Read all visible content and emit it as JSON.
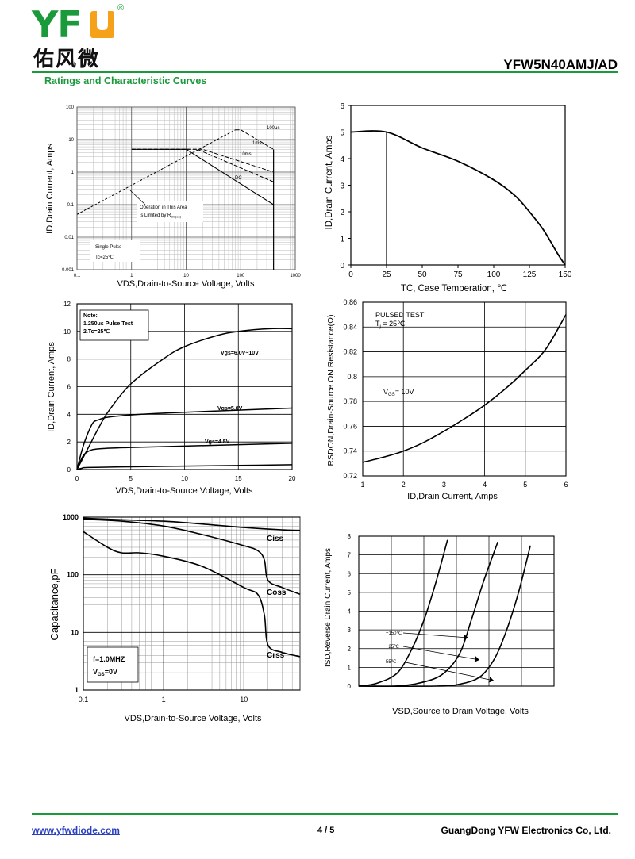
{
  "header": {
    "logo_letters": "YF",
    "logo_reg": "®",
    "logo_chinese": "佑风微",
    "part_number": "YFW5N40AMJ/AD",
    "section_title": "Ratings and Characteristic Curves"
  },
  "footer": {
    "website": "www.yfwdiode.com",
    "page": "4 / 5",
    "company": "GuangDong YFW Electronics Co, Ltd."
  },
  "colors": {
    "brand_green": "#1a9a3a",
    "logo_orange": "#f5a21a",
    "link_blue": "#2a3fbf"
  },
  "chart_data": [
    {
      "id": "soa",
      "type": "line",
      "xscale": "log",
      "yscale": "log",
      "xlim": [
        0.1,
        1000
      ],
      "ylim": [
        0.001,
        100
      ],
      "xlabel": "VDS,Drain-to-Source Voltage, Volts",
      "ylabel": "ID,Drain Current, Amps",
      "xticks": [
        "0.1",
        "1",
        "10",
        "100",
        "1000"
      ],
      "yticks": [
        "0.001",
        "0.01",
        "0.1",
        "1",
        "10",
        "100"
      ],
      "annotations": {
        "limited": [
          "Operation in This Area",
          "is Limited by R",
          "DS(on)"
        ],
        "pulse": [
          "Single Pulse",
          "Tc=25℃"
        ]
      },
      "series": [
        {
          "name": "RDS(on) limit",
          "values": [
            [
              0.1,
              0.05
            ],
            [
              80,
              20
            ]
          ]
        },
        {
          "name": "100μs",
          "values": [
            [
              80,
              20
            ],
            [
              100,
              20
            ],
            [
              400,
              5
            ]
          ]
        },
        {
          "name": "1ms",
          "values": [
            [
              1,
              5
            ],
            [
              20,
              5
            ],
            [
              400,
              1
            ]
          ]
        },
        {
          "name": "10ms",
          "values": [
            [
              1,
              5
            ],
            [
              16,
              5
            ],
            [
              400,
              0.5
            ]
          ]
        },
        {
          "name": "DC",
          "values": [
            [
              1,
              5
            ],
            [
              10,
              5
            ],
            [
              400,
              0.1
            ]
          ]
        }
      ]
    },
    {
      "id": "derating",
      "type": "line",
      "xlim": [
        0,
        150
      ],
      "ylim": [
        0,
        6
      ],
      "xlabel": "TC, Case Temperation, ℃",
      "ylabel": "ID,Drain Current, Amps",
      "xticks": [
        "0",
        "25",
        "50",
        "75",
        "100",
        "125",
        "150"
      ],
      "yticks": [
        "0",
        "1",
        "2",
        "3",
        "4",
        "5",
        "6"
      ],
      "series": [
        {
          "values": [
            [
              0,
              5
            ],
            [
              25,
              5
            ],
            [
              50,
              4.4
            ],
            [
              75,
              3.9
            ],
            [
              100,
              3.2
            ],
            [
              115,
              2.6
            ],
            [
              125,
              2
            ],
            [
              135,
              1.3
            ],
            [
              145,
              0.4
            ],
            [
              150,
              0
            ]
          ]
        }
      ]
    },
    {
      "id": "output",
      "type": "line",
      "xlim": [
        0,
        20
      ],
      "ylim": [
        0,
        12
      ],
      "xlabel": "VDS,Drain-to-Source Voltage, Volts",
      "ylabel": "ID,Drain Current, Amps",
      "xticks": [
        "0",
        "5",
        "10",
        "15",
        "20"
      ],
      "yticks": [
        "0",
        "2",
        "4",
        "6",
        "8",
        "10",
        "12"
      ],
      "note": [
        "Note:",
        "1.250us Pulse Test",
        "2.Tc=25℃"
      ],
      "series": [
        {
          "name": "Vgs=6.0V~10V",
          "values": [
            [
              0,
              0
            ],
            [
              1,
              1.5
            ],
            [
              2,
              3
            ],
            [
              3,
              4.3
            ],
            [
              5,
              6.2
            ],
            [
              8,
              8
            ],
            [
              10,
              8.9
            ],
            [
              13,
              9.7
            ],
            [
              15,
              10
            ],
            [
              18,
              10.2
            ],
            [
              20,
              10.2
            ]
          ]
        },
        {
          "name": "Vgs=5.0V",
          "values": [
            [
              0,
              0
            ],
            [
              0.5,
              1.5
            ],
            [
              1,
              2.6
            ],
            [
              1.5,
              3.4
            ],
            [
              2,
              3.6
            ],
            [
              3,
              3.8
            ],
            [
              6,
              4
            ],
            [
              10,
              4.15
            ],
            [
              15,
              4.3
            ],
            [
              20,
              4.45
            ]
          ]
        },
        {
          "name": "Vgs=4.5V",
          "values": [
            [
              0,
              0
            ],
            [
              0.5,
              0.9
            ],
            [
              1,
              1.3
            ],
            [
              2,
              1.5
            ],
            [
              5,
              1.6
            ],
            [
              10,
              1.7
            ],
            [
              15,
              1.8
            ],
            [
              20,
              1.9
            ]
          ]
        },
        {
          "values": [
            [
              0,
              0
            ],
            [
              0.5,
              0.1
            ],
            [
              1,
              0.15
            ],
            [
              5,
              0.2
            ],
            [
              10,
              0.25
            ],
            [
              15,
              0.3
            ],
            [
              20,
              0.35
            ]
          ]
        }
      ]
    },
    {
      "id": "rdson",
      "type": "line",
      "xlim": [
        1,
        6
      ],
      "ylim": [
        0.72,
        0.86
      ],
      "xlabel": "ID,Drain Current, Amps",
      "ylabel": "RSDON,Drain-Source ON Resistance(Ω)",
      "xticks": [
        "1",
        "2",
        "3",
        "4",
        "5",
        "6"
      ],
      "yticks": [
        "0.72",
        "0.74",
        "0.76",
        "0.78",
        "0.8",
        "0.82",
        "0.84",
        "0.86"
      ],
      "annotations": {
        "pulsed": "PULSED TEST",
        "tj": "T",
        "tj_sub": "j",
        "tj_val": " = 25℃",
        "vgs": "V",
        "vgs_sub": "GS",
        "vgs_val": "= 10V"
      },
      "series": [
        {
          "values": [
            [
              1,
              0.731
            ],
            [
              1.5,
              0.735
            ],
            [
              2,
              0.74
            ],
            [
              2.5,
              0.747
            ],
            [
              3,
              0.756
            ],
            [
              3.5,
              0.766
            ],
            [
              4,
              0.777
            ],
            [
              4.5,
              0.79
            ],
            [
              5,
              0.805
            ],
            [
              5.5,
              0.822
            ],
            [
              6,
              0.85
            ]
          ]
        }
      ]
    },
    {
      "id": "capacitance",
      "type": "line",
      "xscale": "log",
      "yscale": "log",
      "xlim": [
        0.1,
        50
      ],
      "ylim": [
        1,
        1000
      ],
      "xlabel": "VDS,Drain-to-Source Voltage, Volts",
      "ylabel": "Capacitance,pF",
      "xticks": [
        "0.1",
        "1",
        "10"
      ],
      "yticks": [
        "1",
        "10",
        "100",
        "1000"
      ],
      "note": [
        "f=1.0MHZ",
        "V",
        "GS",
        "=0V"
      ],
      "series": [
        {
          "name": "Ciss",
          "values": [
            [
              0.1,
              960
            ],
            [
              0.3,
              900
            ],
            [
              1,
              850
            ],
            [
              3,
              760
            ],
            [
              10,
              660
            ],
            [
              30,
              600
            ],
            [
              50,
              590
            ]
          ]
        },
        {
          "name": "Coss",
          "values": [
            [
              0.1,
              920
            ],
            [
              0.3,
              850
            ],
            [
              1,
              700
            ],
            [
              3,
              500
            ],
            [
              10,
              320
            ],
            [
              15,
              260
            ],
            [
              18,
              180
            ],
            [
              20,
              80
            ],
            [
              30,
              60
            ],
            [
              50,
              46
            ]
          ]
        },
        {
          "name": "Crss",
          "values": [
            [
              0.1,
              560
            ],
            [
              0.2,
              300
            ],
            [
              0.3,
              240
            ],
            [
              0.5,
              240
            ],
            [
              1,
              210
            ],
            [
              3,
              140
            ],
            [
              10,
              60
            ],
            [
              15,
              45
            ],
            [
              18,
              20
            ],
            [
              20,
              6
            ],
            [
              30,
              4.5
            ],
            [
              50,
              3.8
            ]
          ]
        }
      ]
    },
    {
      "id": "diode",
      "type": "line",
      "xlim": [
        0,
        1.2
      ],
      "ylim": [
        0,
        8
      ],
      "xlabel": "VSD,Source to Drain Voltage, Volts",
      "ylabel": "ISD,Reverse Drain Current, Amps",
      "yticks": [
        "0",
        "1",
        "2",
        "3",
        "4",
        "5",
        "6",
        "7",
        "8"
      ],
      "series": [
        {
          "name": "-55℃",
          "values": [
            [
              0.54,
              0
            ],
            [
              0.8,
              0
            ],
            [
              0.88,
              0.1
            ],
            [
              0.95,
              0.5
            ],
            [
              1.0,
              1.5
            ],
            [
              1.04,
              3
            ],
            [
              1.08,
              5
            ],
            [
              1.12,
              7.5
            ]
          ]
        },
        {
          "name": "+25℃",
          "values": [
            [
              0.54,
              0
            ],
            [
              0.66,
              0
            ],
            [
              0.74,
              0.15
            ],
            [
              0.82,
              0.6
            ],
            [
              0.88,
              1.7
            ],
            [
              0.92,
              3.5
            ],
            [
              0.96,
              5.5
            ],
            [
              1.01,
              7.7
            ]
          ]
        },
        {
          "name": "+150℃",
          "values": [
            [
              0.54,
              0
            ],
            [
              0.6,
              0.15
            ],
            [
              0.67,
              0.7
            ],
            [
              0.72,
              2
            ],
            [
              0.76,
              3.5
            ],
            [
              0.8,
              5.5
            ],
            [
              0.84,
              7.8
            ]
          ]
        }
      ]
    }
  ]
}
